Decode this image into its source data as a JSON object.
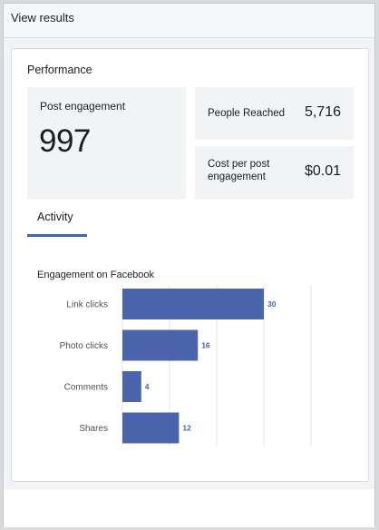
{
  "topbar": {
    "title": "View results"
  },
  "performance": {
    "title": "Performance",
    "post_engagement": {
      "label": "Post engagement",
      "value": "997"
    },
    "people_reached": {
      "label": "People Reached",
      "value": "5,716"
    },
    "cost_per_engagement": {
      "label": "Cost per post engagement",
      "value": "$0.01"
    }
  },
  "tabs": {
    "activity": "Activity"
  },
  "chart_data": {
    "type": "bar",
    "orientation": "horizontal",
    "title": "Engagement on Facebook",
    "categories": [
      "Link clicks",
      "Photo clicks",
      "Comments",
      "Shares"
    ],
    "values": [
      30,
      16,
      4,
      12
    ],
    "xlim": [
      0,
      40
    ],
    "grid": true,
    "color": "#4a64ad",
    "value_label_color": "#4267b2"
  }
}
